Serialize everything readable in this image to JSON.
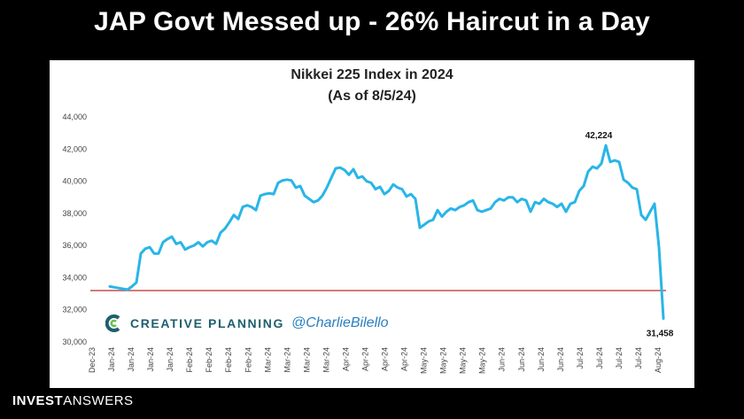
{
  "headline": "JAP Govt Messed up - 26% Haircut in a Day",
  "footer": {
    "bold": "INVEST",
    "light": "ANSWERS"
  },
  "branding": {
    "name": "CREATIVE PLANNING",
    "handle": "@CharlieBilello",
    "logo_icon": "creative-planning-c-logo"
  },
  "colors": {
    "line": "#29b5e8",
    "reference": "#c0504d",
    "panel": "#ffffff",
    "background": "#000000"
  },
  "chart_data": {
    "type": "line",
    "title": "Nikkei 225 Index in 2024",
    "subtitle": "(As of 8/5/24)",
    "xlabel": "",
    "ylabel": "",
    "ylim": [
      30000,
      44000
    ],
    "yticks": [
      30000,
      32000,
      34000,
      36000,
      38000,
      40000,
      42000,
      44000
    ],
    "ytick_labels": [
      "30,000",
      "32,000",
      "34,000",
      "36,000",
      "38,000",
      "40,000",
      "42,000",
      "44,000"
    ],
    "xtick_labels": [
      "Dec-23",
      "Jan-24",
      "Jan-24",
      "Jan-24",
      "Jan-24",
      "Feb-24",
      "Feb-24",
      "Feb-24",
      "Feb-24",
      "Mar-24",
      "Mar-24",
      "Mar-24",
      "Mar-24",
      "Apr-24",
      "Apr-24",
      "Apr-24",
      "Apr-24",
      "May-24",
      "May-24",
      "May-24",
      "May-24",
      "Jun-24",
      "Jun-24",
      "Jun-24",
      "Jun-24",
      "Jul-24",
      "Jul-24",
      "Jul-24",
      "Jul-24",
      "Aug-24"
    ],
    "reference_line": 33200,
    "annotations": [
      {
        "label": "42,224",
        "value": 42224,
        "index": 112
      },
      {
        "label": "31,458",
        "value": 31458,
        "index": 125
      }
    ],
    "series": [
      {
        "values": [
          33450,
          33400,
          33350,
          33300,
          33250,
          33450,
          33700,
          35500,
          35800,
          35900,
          35500,
          35500,
          36200,
          36400,
          36550,
          36100,
          36200,
          35750,
          35900,
          36000,
          36200,
          35950,
          36200,
          36300,
          36100,
          36800,
          37050,
          37450,
          37900,
          37650,
          38400,
          38500,
          38400,
          38200,
          39100,
          39200,
          39250,
          39200,
          39900,
          40050,
          40100,
          40050,
          39600,
          39700,
          39100,
          38900,
          38700,
          38800,
          39100,
          39600,
          40200,
          40800,
          40850,
          40700,
          40400,
          40750,
          40200,
          40300,
          40000,
          39900,
          39500,
          39650,
          39200,
          39400,
          39800,
          39600,
          39500,
          39050,
          39200,
          38900,
          37100,
          37300,
          37500,
          37600,
          38200,
          37800,
          38100,
          38300,
          38200,
          38400,
          38500,
          38700,
          38800,
          38200,
          38100,
          38200,
          38300,
          38700,
          38900,
          38800,
          39000,
          39000,
          38700,
          38900,
          38800,
          38100,
          38700,
          38600,
          38900,
          38700,
          38600,
          38400,
          38600,
          38100,
          38600,
          38700,
          39400,
          39700,
          40600,
          40900,
          40800,
          41100,
          42224,
          41200,
          41300,
          41200,
          40100,
          39900,
          39600,
          39500,
          37900,
          37600,
          38100,
          38600,
          35900,
          31458
        ]
      }
    ]
  }
}
